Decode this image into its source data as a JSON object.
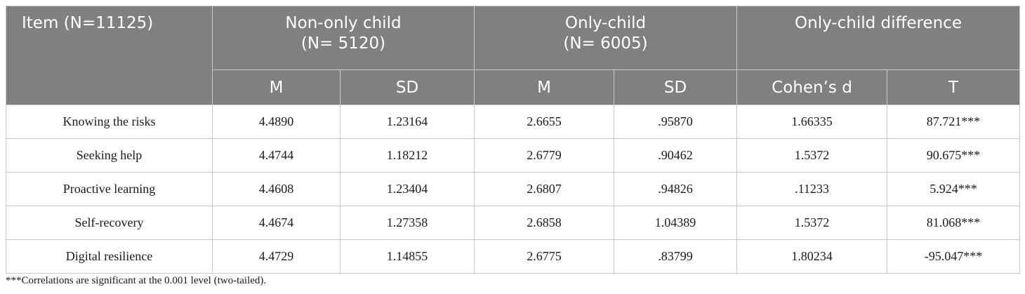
{
  "table": {
    "header": {
      "item": "Item (N=11125)",
      "non_only": {
        "line1": "Non-only child",
        "line2": "(N= 5120)"
      },
      "only": {
        "line1": "Only-child",
        "line2": "(N= 6005)"
      },
      "difference": "Only-child difference",
      "sub": [
        "M",
        "SD",
        "M",
        "SD",
        "Cohen’s d",
        "T"
      ]
    },
    "rows": [
      [
        "Knowing the risks",
        "4.4890",
        "1.23164",
        "2.6655",
        ".95870",
        "1.66335",
        "87.721***"
      ],
      [
        "Seeking help",
        "4.4744",
        "1.18212",
        "2.6779",
        ".90462",
        "1.5372",
        "90.675***"
      ],
      [
        "Proactive learning",
        "4.4608",
        "1.23404",
        "2.6807",
        ".94826",
        ".11233",
        "5.924***"
      ],
      [
        "Self-recovery",
        "4.4674",
        "1.27358",
        "2.6858",
        "1.04389",
        "1.5372",
        "81.068***"
      ],
      [
        "Digital resilience",
        "4.4729",
        "1.14855",
        "2.6775",
        ".83799",
        "1.80234",
        "-95.047***"
      ]
    ]
  },
  "footnote": "***Correlations are significant at the 0.001 level (two-tailed).",
  "colors": {
    "header_bg": "#808080",
    "header_text": "#ffffff",
    "border": "#c8c8c8"
  }
}
